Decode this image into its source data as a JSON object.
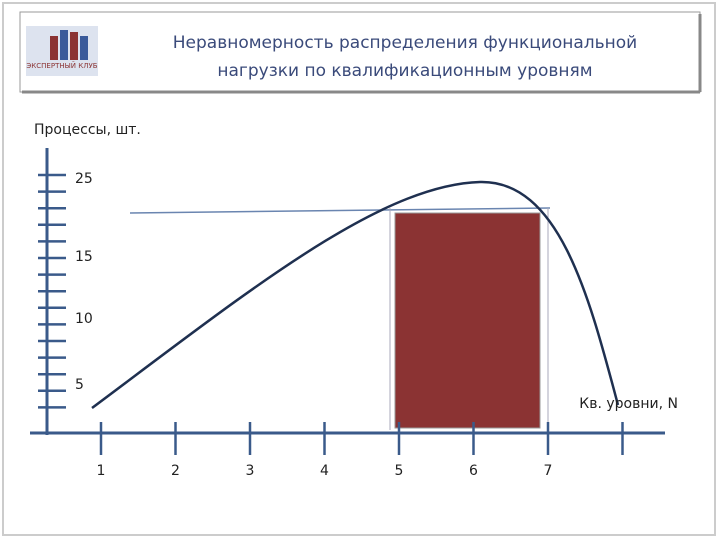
{
  "header": {
    "title_line1": "Неравномерность распределения функциональной",
    "title_line2": "нагрузки по квалификационным уровням",
    "logo_text": "ЭКСПЕРТНЫЙ КЛУБ"
  },
  "diagram": {
    "y_axis_label": "Процессы, шт.",
    "x_axis_label": "Кв. уровни, N",
    "y_labels": [
      25,
      15,
      10,
      5
    ],
    "x_labels": [
      1,
      2,
      3,
      4,
      5,
      6,
      7
    ]
  }
}
